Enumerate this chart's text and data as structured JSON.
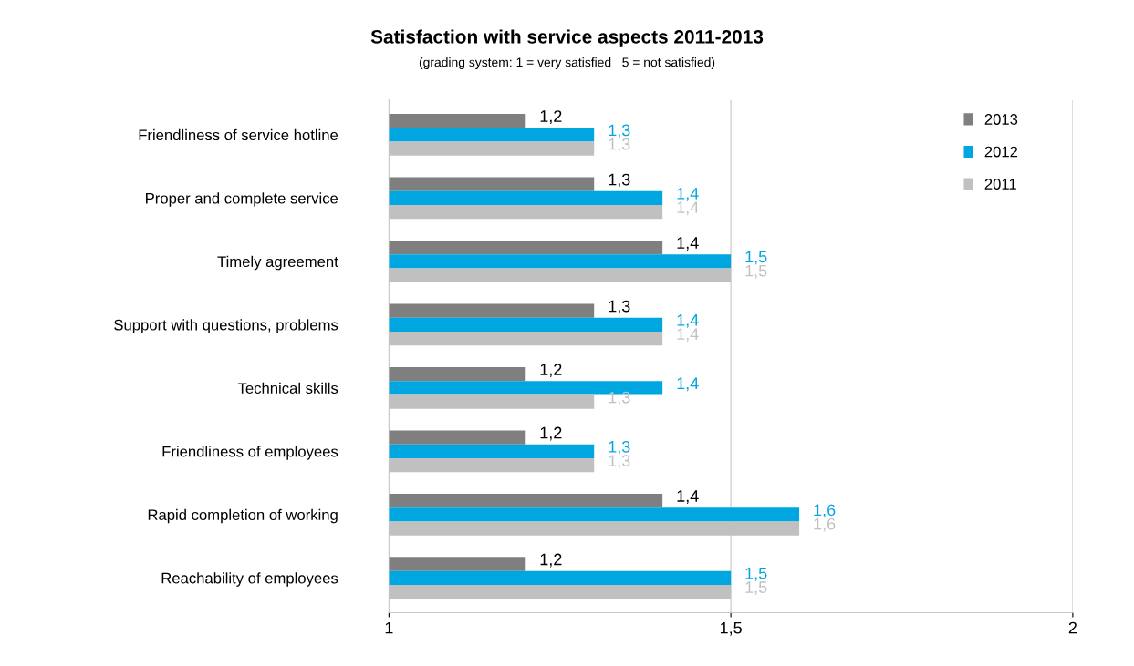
{
  "chart_data": {
    "type": "bar",
    "orientation": "horizontal",
    "title": "Satisfaction with service aspects 2011-2013",
    "subtitle": "(grading system: 1 = very satisfied   5 = not satisfied)",
    "categories": [
      "Friendliness of service hotline",
      "Proper and complete service",
      "Timely agreement",
      "Support with questions, problems",
      "Technical skills",
      "Friendliness of employees",
      "Rapid completion of working",
      "Reachability of employees"
    ],
    "series": [
      {
        "name": "2013",
        "color": "#7f7f7f",
        "values": [
          1.2,
          1.3,
          1.4,
          1.3,
          1.2,
          1.2,
          1.4,
          1.2
        ],
        "value_labels": [
          "1,2",
          "1,3",
          "1,4",
          "1,3",
          "1,2",
          "1,2",
          "1,4",
          "1,2"
        ]
      },
      {
        "name": "2012",
        "color": "#00a6e0",
        "values": [
          1.3,
          1.4,
          1.5,
          1.4,
          1.4,
          1.3,
          1.6,
          1.5
        ],
        "value_labels": [
          "1,3",
          "1,4",
          "1,5",
          "1,4",
          "1,4",
          "1,3",
          "1,6",
          "1,5"
        ]
      },
      {
        "name": "2011",
        "color": "#c0c0c0",
        "values": [
          1.3,
          1.4,
          1.5,
          1.4,
          1.3,
          1.3,
          1.6,
          1.5
        ],
        "value_labels": [
          "1,3",
          "1,4",
          "1,5",
          "1,4",
          "1,3",
          "1,3",
          "1,6",
          "1,5"
        ]
      }
    ],
    "xlim": [
      1,
      2
    ],
    "xticks": [
      1,
      {
        "value": 1.5,
        "label": "1,5"
      },
      2
    ],
    "grid": "x",
    "legend": "top right"
  }
}
